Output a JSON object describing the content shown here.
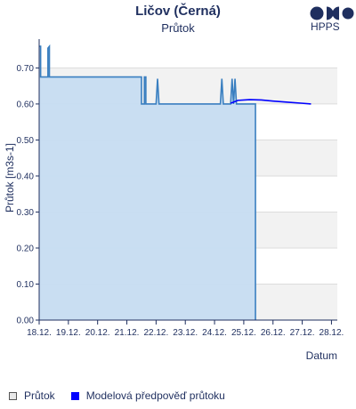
{
  "header": {
    "title": "Ličov (Černá)",
    "subtitle": "Průtok"
  },
  "logo": {
    "text": "HPPS"
  },
  "legend": [
    {
      "label": "Průtok",
      "color": "#e8e8e8"
    },
    {
      "label": "Modelová předpověď průtoku",
      "color": "#0000ff"
    }
  ],
  "chart_data": {
    "type": "line",
    "xlabel": "Datum",
    "ylabel": "Průtok [m3s-1]",
    "ylim": [
      0,
      0.78
    ],
    "y_ticks": [
      "0.00",
      "0.10",
      "0.20",
      "0.30",
      "0.40",
      "0.50",
      "0.60",
      "0.70"
    ],
    "x_ticks": [
      "18.12.",
      "19.12.",
      "20.12.",
      "21.12.",
      "22.12.",
      "23.12.",
      "24.12.",
      "25.12.",
      "26.12.",
      "27.12.",
      "28.12."
    ],
    "xlim": [
      0,
      10.2
    ],
    "grid": true,
    "shaded_bands": [
      [
        0.0,
        0.1
      ],
      [
        0.2,
        0.3
      ],
      [
        0.4,
        0.5
      ],
      [
        0.6,
        0.7
      ]
    ],
    "series": [
      {
        "name": "Průtok",
        "color": "#3a7fc0",
        "fill": "#c6dcf1",
        "points": [
          [
            0.0,
            0.76
          ],
          [
            0.05,
            0.76
          ],
          [
            0.05,
            0.675
          ],
          [
            0.3,
            0.675
          ],
          [
            0.3,
            0.755
          ],
          [
            0.35,
            0.76
          ],
          [
            0.35,
            0.675
          ],
          [
            3.5,
            0.675
          ],
          [
            3.5,
            0.6
          ],
          [
            3.6,
            0.6
          ],
          [
            3.6,
            0.675
          ],
          [
            3.65,
            0.675
          ],
          [
            3.65,
            0.6
          ],
          [
            4.0,
            0.6
          ],
          [
            4.05,
            0.67
          ],
          [
            4.1,
            0.6
          ],
          [
            6.2,
            0.6
          ],
          [
            6.25,
            0.67
          ],
          [
            6.3,
            0.6
          ],
          [
            6.55,
            0.6
          ],
          [
            6.6,
            0.67
          ],
          [
            6.65,
            0.6
          ],
          [
            6.7,
            0.67
          ],
          [
            6.75,
            0.6
          ],
          [
            7.0,
            0.6
          ],
          [
            7.4,
            0.6
          ],
          [
            7.4,
            0.0
          ]
        ]
      },
      {
        "name": "Modelová předpověď průtoku",
        "color": "#0000ff",
        "points": [
          [
            6.55,
            0.602
          ],
          [
            6.8,
            0.61
          ],
          [
            7.2,
            0.612
          ],
          [
            7.6,
            0.611
          ],
          [
            8.0,
            0.608
          ],
          [
            8.5,
            0.605
          ],
          [
            9.0,
            0.602
          ],
          [
            9.3,
            0.6
          ]
        ]
      }
    ]
  }
}
